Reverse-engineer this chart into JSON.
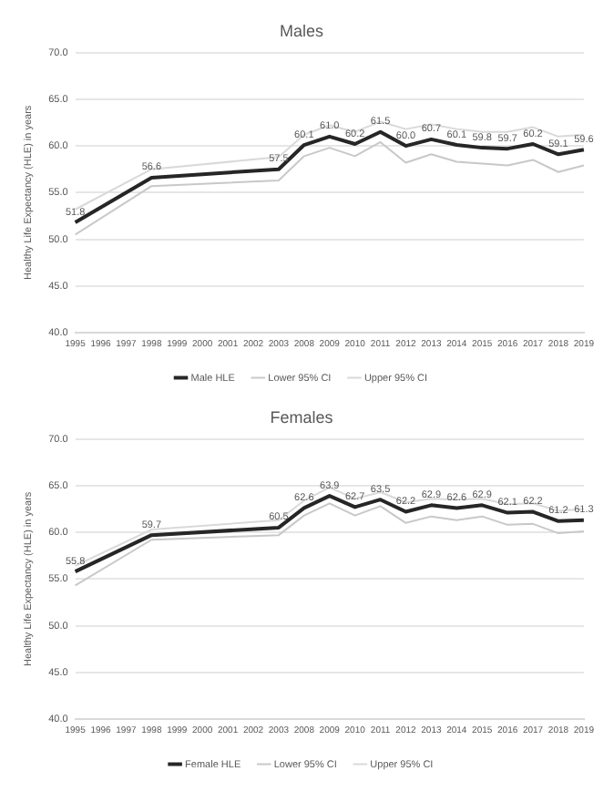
{
  "chart_data": [
    {
      "type": "line",
      "title": "Males",
      "ylabel": "Healthy Life Expectancy (HLE) in years",
      "categories": [
        "1995",
        "1996",
        "1997",
        "1998",
        "1999",
        "2000",
        "2001",
        "2002",
        "2003",
        "2008",
        "2009",
        "2010",
        "2011",
        "2012",
        "2013",
        "2014",
        "2015",
        "2016",
        "2017",
        "2018",
        "2019"
      ],
      "series": [
        {
          "name": "Male HLE",
          "color": "#262626",
          "values": [
            51.8,
            null,
            null,
            56.6,
            null,
            null,
            null,
            null,
            57.5,
            60.1,
            61.0,
            60.2,
            61.5,
            60.0,
            60.7,
            60.1,
            59.8,
            59.7,
            60.2,
            59.1,
            59.6
          ],
          "value_labels": [
            "51.8",
            null,
            null,
            "56.6",
            null,
            null,
            null,
            null,
            "57.5",
            "60.1",
            "61.0",
            "60.2",
            "61.5",
            "60.0",
            "60.7",
            "60.1",
            "59.8",
            "59.7",
            "60.2",
            "59.1",
            "59.6"
          ]
        },
        {
          "name": "Lower 95% CI",
          "color": "#c8c8c8",
          "values": [
            50.5,
            null,
            null,
            55.7,
            null,
            null,
            null,
            null,
            56.3,
            58.9,
            59.8,
            58.9,
            60.4,
            58.2,
            59.1,
            58.3,
            58.1,
            57.9,
            58.5,
            57.2,
            57.9
          ]
        },
        {
          "name": "Upper 95% CI",
          "color": "#d9d9d9",
          "values": [
            53.2,
            null,
            null,
            57.5,
            null,
            null,
            null,
            null,
            58.8,
            61.2,
            62.2,
            61.5,
            62.6,
            61.8,
            62.3,
            61.8,
            61.5,
            61.5,
            62.0,
            61.0,
            61.2
          ]
        }
      ],
      "ylim": [
        40,
        70
      ],
      "yticks": [
        {
          "value": 40,
          "label": "40.0"
        },
        {
          "value": 45,
          "label": "45.0"
        },
        {
          "value": 50,
          "label": "50.0"
        },
        {
          "value": 55,
          "label": "55.0"
        },
        {
          "value": 60,
          "label": "60.0"
        },
        {
          "value": 65,
          "label": "65.0"
        },
        {
          "value": 70,
          "label": "70.0"
        }
      ],
      "grid": "y",
      "legend": "bottom"
    },
    {
      "type": "line",
      "title": "Females",
      "ylabel": "Healthy Life Expectancy (HLE) in years",
      "categories": [
        "1995",
        "1996",
        "1997",
        "1998",
        "1999",
        "2000",
        "2001",
        "2002",
        "2003",
        "2008",
        "2009",
        "2010",
        "2011",
        "2012",
        "2013",
        "2014",
        "2015",
        "2016",
        "2017",
        "2018",
        "2019"
      ],
      "series": [
        {
          "name": "Female HLE",
          "color": "#262626",
          "values": [
            55.8,
            null,
            null,
            59.7,
            null,
            null,
            null,
            null,
            60.5,
            62.6,
            63.9,
            62.7,
            63.5,
            62.2,
            62.9,
            62.6,
            62.9,
            62.1,
            62.2,
            61.2,
            61.3
          ],
          "value_labels": [
            "55.8",
            null,
            null,
            "59.7",
            null,
            null,
            null,
            null,
            "60.5",
            "62.6",
            "63.9",
            "62.7",
            "63.5",
            "62.2",
            "62.9",
            "62.6",
            "62.9",
            "62.1",
            "62.2",
            "61.2",
            "61.3"
          ]
        },
        {
          "name": "Lower 95% CI",
          "color": "#c8c8c8",
          "values": [
            54.3,
            null,
            null,
            59.2,
            null,
            null,
            null,
            null,
            59.7,
            61.8,
            63.1,
            61.8,
            62.8,
            61.0,
            61.7,
            61.3,
            61.7,
            60.8,
            60.9,
            59.9,
            60.1
          ]
        },
        {
          "name": "Upper 95% CI",
          "color": "#d9d9d9",
          "values": [
            56.4,
            null,
            null,
            60.3,
            null,
            null,
            null,
            null,
            61.3,
            63.4,
            64.8,
            63.6,
            64.3,
            63.2,
            63.6,
            63.5,
            63.6,
            63.0,
            63.1,
            62.3,
            62.5
          ]
        }
      ],
      "ylim": [
        40,
        70
      ],
      "yticks": [
        {
          "value": 40,
          "label": "40.0"
        },
        {
          "value": 45,
          "label": "45.0"
        },
        {
          "value": 50,
          "label": "50.0"
        },
        {
          "value": 55,
          "label": "55.0"
        },
        {
          "value": 60,
          "label": "60.0"
        },
        {
          "value": 65,
          "label": "65.0"
        },
        {
          "value": 70,
          "label": "70.0"
        }
      ],
      "grid": "y",
      "legend": "bottom"
    }
  ]
}
